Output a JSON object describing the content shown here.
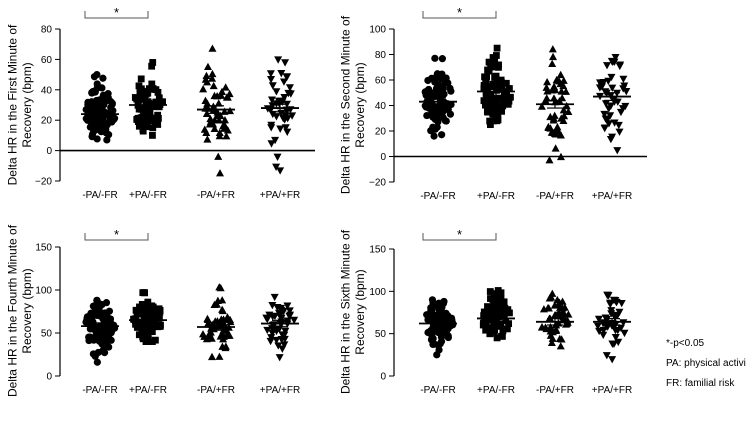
{
  "chart_data": [
    {
      "type": "scatter",
      "ylabel": "Delta HR in the First Minute of Recovery (bpm)",
      "ylim": [
        -20,
        80
      ],
      "yticks": [
        -20,
        0,
        20,
        40,
        60,
        80
      ],
      "categories": [
        "-PA/-FR",
        "+PA/-FR",
        "-PA/+FR",
        "+PA/+FR"
      ],
      "markers": [
        "circle",
        "square",
        "triangle-up",
        "triangle-down"
      ],
      "groups": [
        {
          "name": "-PA/-FR",
          "n": 90,
          "mean": 24,
          "min": 7,
          "max": 50
        },
        {
          "name": "+PA/-FR",
          "n": 80,
          "mean": 30,
          "min": 10,
          "max": 58
        },
        {
          "name": "-PA/+FR",
          "n": 50,
          "mean": 27,
          "min": -15,
          "max": 67
        },
        {
          "name": "+PA/+FR",
          "n": 45,
          "mean": 28,
          "min": -13,
          "max": 60
        }
      ],
      "significance": {
        "from": "-PA/-FR",
        "to": "+PA/-FR",
        "label": "*"
      }
    },
    {
      "type": "scatter",
      "ylabel": "Delta HR in the Second Minute of Recovery (bpm)",
      "ylim": [
        -20,
        100
      ],
      "yticks": [
        -20,
        0,
        20,
        40,
        60,
        80,
        100
      ],
      "categories": [
        "-PA/-FR",
        "+PA/-FR",
        "-PA/+FR",
        "+PA/+FR"
      ],
      "markers": [
        "circle",
        "square",
        "triangle-up",
        "triangle-down"
      ],
      "groups": [
        {
          "name": "-PA/-FR",
          "n": 90,
          "mean": 43,
          "min": 16,
          "max": 77
        },
        {
          "name": "+PA/-FR",
          "n": 80,
          "mean": 51,
          "min": 25,
          "max": 85
        },
        {
          "name": "-PA/+FR",
          "n": 50,
          "mean": 41,
          "min": -3,
          "max": 84
        },
        {
          "name": "+PA/+FR",
          "n": 45,
          "mean": 47,
          "min": 5,
          "max": 78
        }
      ],
      "significance": {
        "from": "-PA/-FR",
        "to": "+PA/-FR",
        "label": "*"
      }
    },
    {
      "type": "scatter",
      "ylabel": "Delta HR in the Fourth Minute of Recovery (bpm)",
      "ylim": [
        0,
        150
      ],
      "yticks": [
        0,
        50,
        100,
        150
      ],
      "categories": [
        "-PA/-FR",
        "+PA/-FR",
        "-PA/+FR",
        "+PA/+FR"
      ],
      "markers": [
        "circle",
        "square",
        "triangle-up",
        "triangle-down"
      ],
      "groups": [
        {
          "name": "-PA/-FR",
          "n": 90,
          "mean": 58,
          "min": 16,
          "max": 88
        },
        {
          "name": "+PA/-FR",
          "n": 80,
          "mean": 65,
          "min": 40,
          "max": 97
        },
        {
          "name": "-PA/+FR",
          "n": 50,
          "mean": 57,
          "min": 22,
          "max": 103
        },
        {
          "name": "+PA/+FR",
          "n": 45,
          "mean": 61,
          "min": 22,
          "max": 92
        }
      ],
      "significance": {
        "from": "-PA/-FR",
        "to": "+PA/-FR",
        "label": "*"
      }
    },
    {
      "type": "scatter",
      "ylabel": "Delta HR in the Sixth Minute of Recovery (bpm)",
      "ylim": [
        0,
        150
      ],
      "yticks": [
        0,
        50,
        100,
        150
      ],
      "categories": [
        "-PA/-FR",
        "+PA/-FR",
        "-PA/+FR",
        "+PA/+FR"
      ],
      "markers": [
        "circle",
        "square",
        "triangle-up",
        "triangle-down"
      ],
      "groups": [
        {
          "name": "-PA/-FR",
          "n": 90,
          "mean": 62,
          "min": 25,
          "max": 90
        },
        {
          "name": "+PA/-FR",
          "n": 80,
          "mean": 68,
          "min": 45,
          "max": 101
        },
        {
          "name": "-PA/+FR",
          "n": 50,
          "mean": 64,
          "min": 35,
          "max": 97
        },
        {
          "name": "+PA/+FR",
          "n": 45,
          "mean": 64,
          "min": 20,
          "max": 96
        }
      ],
      "significance": {
        "from": "-PA/-FR",
        "to": "+PA/-FR",
        "label": "*"
      }
    }
  ],
  "legend": {
    "lines": [
      "*-p<0.05",
      "PA: physical activi",
      "FR: familial risk"
    ]
  }
}
